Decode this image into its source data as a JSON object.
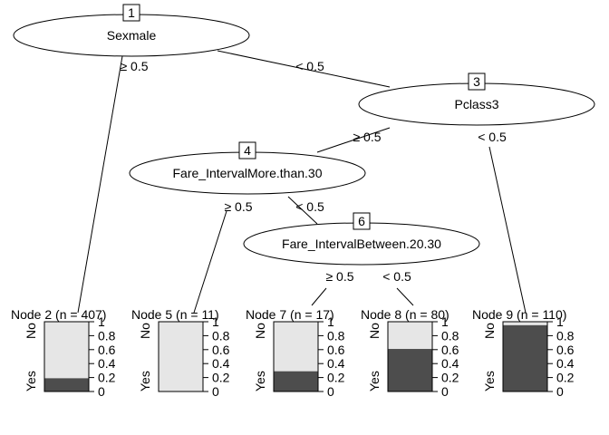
{
  "tree": {
    "inner_nodes": [
      {
        "id": "1",
        "variable": "Sexmale"
      },
      {
        "id": "3",
        "variable": "Pclass3"
      },
      {
        "id": "4",
        "variable": "Fare_IntervalMore.than.30"
      },
      {
        "id": "6",
        "variable": "Fare_IntervalBetween.20.30"
      }
    ],
    "edges": [
      {
        "from": "1",
        "to": "2",
        "label": "≥ 0.5"
      },
      {
        "from": "1",
        "to": "3",
        "label": "< 0.5"
      },
      {
        "from": "3",
        "to": "4",
        "label": "≥ 0.5"
      },
      {
        "from": "3",
        "to": "9",
        "label": "< 0.5"
      },
      {
        "from": "4",
        "to": "5",
        "label": "≥ 0.5"
      },
      {
        "from": "4",
        "to": "6",
        "label": "< 0.5"
      },
      {
        "from": "6",
        "to": "7",
        "label": "≥ 0.5"
      },
      {
        "from": "6",
        "to": "8",
        "label": "< 0.5"
      }
    ],
    "terminal_nodes": [
      {
        "id": "2",
        "label": "Node 2 (n = 407)",
        "yes_fraction": 0.19
      },
      {
        "id": "5",
        "label": "Node 5 (n = 11)",
        "yes_fraction": 0.0
      },
      {
        "id": "7",
        "label": "Node 7 (n = 17)",
        "yes_fraction": 0.29
      },
      {
        "id": "8",
        "label": "Node 8 (n = 80)",
        "yes_fraction": 0.61
      },
      {
        "id": "9",
        "label": "Node 9 (n = 110)",
        "yes_fraction": 0.95
      }
    ],
    "class_labels": {
      "top": "No",
      "bottom": "Yes"
    },
    "axis_ticks": [
      "0",
      "0.2",
      "0.4",
      "0.6",
      "0.8",
      "1"
    ],
    "colors": {
      "yes": "#4d4d4d",
      "no": "#e6e6e6",
      "line": "#000000"
    }
  }
}
